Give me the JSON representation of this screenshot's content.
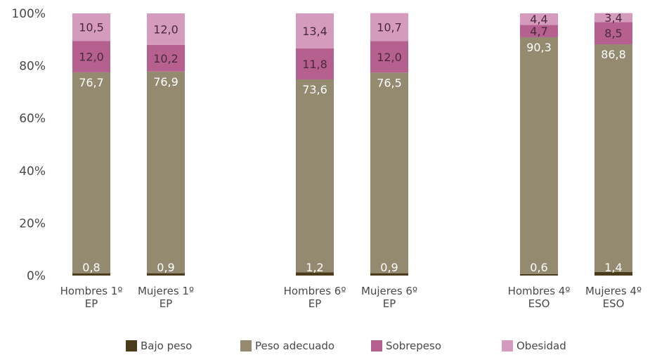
{
  "chart_data": {
    "type": "bar",
    "stacked": true,
    "categories": [
      [
        "Hombres  1º",
        "EP"
      ],
      [
        "Mujeres  1º",
        "EP"
      ],
      [
        "Hombres  6º",
        "EP"
      ],
      [
        "Mujeres  6º",
        "EP"
      ],
      [
        "Hombres  4º",
        "ESO"
      ],
      [
        "Mujeres  4º",
        "ESO"
      ]
    ],
    "series": [
      {
        "name": "Bajo peso",
        "color": "#4a3b1b",
        "values": [
          0.8,
          0.9,
          1.2,
          0.9,
          0.6,
          1.4
        ],
        "labels": [
          "0,8",
          "0,9",
          "1,2",
          "0,9",
          "0,6",
          "1,4"
        ]
      },
      {
        "name": "Peso adecuado",
        "color": "#948a70",
        "values": [
          76.7,
          76.9,
          73.6,
          76.5,
          90.3,
          86.8
        ],
        "labels": [
          "76,7",
          "76,9",
          "73,6",
          "76,5",
          "90,3",
          "86,8"
        ]
      },
      {
        "name": "Sobrepeso",
        "color": "#b5608f",
        "values": [
          12.0,
          10.2,
          11.8,
          12.0,
          4.7,
          8.5
        ],
        "labels": [
          "12,0",
          "10,2",
          "11,8",
          "12,0",
          "4,7",
          "8,5"
        ]
      },
      {
        "name": "Obesidad",
        "color": "#d59bbd",
        "values": [
          10.5,
          12.0,
          13.4,
          10.7,
          4.4,
          3.4
        ],
        "labels": [
          "10,5",
          "12,0",
          "13,4",
          "10,7",
          "4,4",
          "3,4"
        ]
      }
    ],
    "ylim": [
      0,
      100
    ],
    "yticks": [
      "0%",
      "20%",
      "40%",
      "60%",
      "80%",
      "100%"
    ],
    "grid": false,
    "legend": "bottom"
  }
}
